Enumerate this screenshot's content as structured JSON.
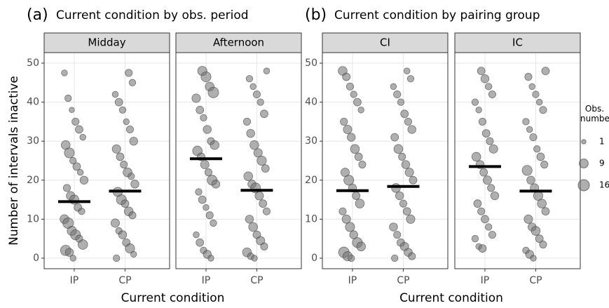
{
  "chart_data": [
    {
      "type": "scatter",
      "panel_label": "(a)",
      "title": "Current condition by obs. period",
      "x_label": "Current condition",
      "y_label": "Number of intervals inactive",
      "ylim": [
        -2.7,
        52.7
      ],
      "yticks": [
        0,
        10,
        20,
        30,
        40,
        50
      ],
      "facets": [
        {
          "name": "Midday",
          "groups": [
            {
              "category": "IP",
              "median": 14.5,
              "values": [
                47.5,
                41,
                38,
                35,
                33,
                31,
                29,
                27,
                25,
                23.5,
                22,
                20,
                18,
                16,
                15,
                13,
                12,
                10,
                9,
                7,
                6,
                5,
                3.5,
                2,
                1.5,
                0
              ],
              "sizes": [
                3,
                4,
                2,
                5,
                6,
                3,
                9,
                12,
                4,
                6,
                3,
                7,
                5,
                8,
                10,
                6,
                4,
                9,
                14,
                10,
                12,
                5,
                11,
                13,
                7,
                3
              ]
            },
            {
              "category": "CP",
              "median": 17.2,
              "values": [
                47.5,
                45,
                42,
                40,
                38,
                35,
                33,
                30,
                28,
                26,
                24,
                22,
                21,
                19,
                17,
                15,
                14,
                12,
                11,
                9,
                7,
                6,
                4,
                2.5,
                1,
                0
              ],
              "sizes": [
                5,
                4,
                3,
                6,
                4,
                3,
                5,
                7,
                8,
                6,
                5,
                9,
                4,
                7,
                10,
                12,
                6,
                9,
                5,
                8,
                4,
                7,
                6,
                10,
                3,
                4
              ]
            }
          ]
        },
        {
          "name": "Afternoon",
          "groups": [
            {
              "category": "IP",
              "median": 25.5,
              "values": [
                48,
                46.5,
                44,
                42.5,
                41,
                38,
                36,
                33,
                30,
                29,
                27.5,
                26,
                24,
                22,
                20,
                19,
                17,
                15,
                13,
                11,
                9,
                6,
                4,
                2,
                1,
                0
              ],
              "sizes": [
                10,
                12,
                9,
                14,
                8,
                6,
                4,
                7,
                5,
                9,
                11,
                6,
                8,
                5,
                12,
                7,
                4,
                6,
                3,
                5,
                4,
                3,
                6,
                4,
                7,
                3
              ]
            },
            {
              "category": "CP",
              "median": 17.4,
              "values": [
                48,
                46,
                44,
                42,
                40,
                37,
                35,
                32,
                29,
                27,
                25,
                23,
                21,
                19,
                18,
                16,
                14,
                12,
                10,
                8,
                6,
                4.5,
                3,
                1.5,
                0.5,
                0
              ],
              "sizes": [
                3,
                4,
                3,
                5,
                4,
                6,
                5,
                7,
                9,
                8,
                10,
                6,
                9,
                7,
                12,
                8,
                6,
                5,
                7,
                9,
                6,
                8,
                5,
                9,
                4,
                3
              ]
            }
          ]
        }
      ]
    },
    {
      "type": "scatter",
      "panel_label": "(b)",
      "title": "Current condition by pairing group",
      "x_label": "Current condition",
      "ylim": [
        -2.7,
        52.7
      ],
      "yticks": [
        0,
        10,
        20,
        30,
        40,
        50
      ],
      "facets": [
        {
          "name": "CI",
          "groups": [
            {
              "category": "IP",
              "median": 17.3,
              "values": [
                48,
                46.5,
                44,
                42,
                40,
                38,
                35,
                33,
                31,
                28,
                26,
                24,
                22,
                20,
                18,
                16,
                14,
                12,
                10,
                8,
                6,
                4,
                3,
                1.5,
                0.5,
                0
              ],
              "sizes": [
                9,
                6,
                5,
                4,
                6,
                3,
                5,
                8,
                7,
                9,
                6,
                5,
                8,
                12,
                7,
                6,
                9,
                5,
                8,
                10,
                7,
                12,
                9,
                14,
                10,
                4
              ]
            },
            {
              "category": "CP",
              "median": 18.4,
              "values": [
                48,
                46,
                44,
                42,
                40,
                37,
                35,
                33,
                31,
                28,
                26,
                24,
                22,
                20,
                18,
                16,
                14,
                12,
                10,
                8,
                6,
                4,
                3,
                1.5,
                0.5,
                0
              ],
              "sizes": [
                3,
                4,
                3,
                5,
                4,
                6,
                5,
                7,
                6,
                9,
                5,
                7,
                8,
                6,
                9,
                7,
                5,
                6,
                8,
                7,
                5,
                6,
                8,
                7,
                5,
                4
              ]
            }
          ]
        },
        {
          "name": "IC",
          "groups": [
            {
              "category": "IP",
              "median": 23.5,
              "values": [
                48,
                46,
                44,
                42,
                40,
                38,
                35,
                32,
                30,
                28,
                26,
                24,
                22,
                20,
                18,
                16,
                14,
                12,
                10,
                8,
                6,
                5,
                3,
                2.5
              ],
              "sizes": [
                6,
                7,
                4,
                5,
                4,
                3,
                5,
                6,
                5,
                8,
                9,
                7,
                6,
                8,
                5,
                7,
                6,
                5,
                6,
                4,
                5,
                4,
                3,
                6
              ]
            },
            {
              "category": "CP",
              "median": 17.2,
              "values": [
                48,
                46.5,
                44,
                42,
                40,
                38,
                35,
                33,
                31,
                28,
                26,
                24,
                22.5,
                20,
                18,
                16,
                14,
                12,
                10,
                8,
                7,
                5,
                3.5,
                2,
                1,
                0
              ],
              "sizes": [
                6,
                5,
                3,
                4,
                3,
                5,
                4,
                3,
                5,
                4,
                6,
                5,
                12,
                7,
                8,
                10,
                9,
                6,
                8,
                7,
                9,
                6,
                5,
                4,
                7,
                3
              ]
            }
          ]
        }
      ],
      "size_legend": {
        "title": "Obs. number",
        "sizes": [
          1,
          9,
          16
        ]
      }
    }
  ]
}
